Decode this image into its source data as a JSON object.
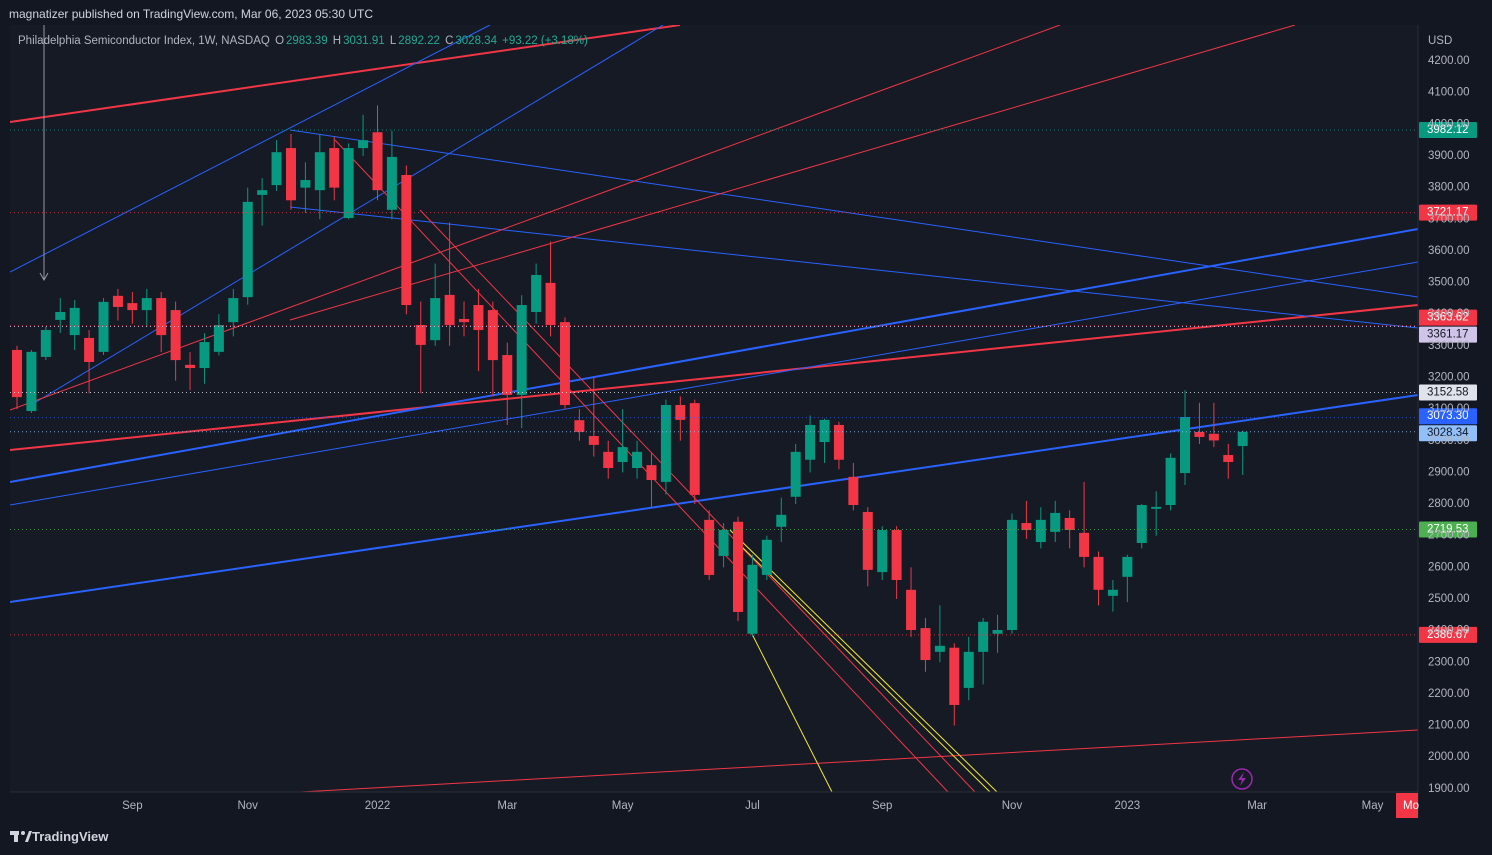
{
  "header": {
    "publisher": "magnatizer published on TradingView.com, Mar 06, 2023 05:30 UTC"
  },
  "footer": {
    "brand": "TradingView"
  },
  "chart_data": {
    "type": "candlestick",
    "title": "Philadelphia Semiconductor Index, 1W, NASDAQ",
    "ohlc_letters": [
      "O",
      "H",
      "L",
      "C"
    ],
    "change": "+93.22 (+3.18%)",
    "currency": "USD",
    "cursor_label": "Mo",
    "up_color": "#089981",
    "down_color": "#f23645",
    "grid": false,
    "categories": [
      null,
      null,
      null,
      null,
      null,
      null,
      null,
      null,
      "Sep",
      null,
      null,
      null,
      null,
      null,
      null,
      null,
      "Nov",
      null,
      null,
      null,
      null,
      null,
      null,
      null,
      null,
      "2022",
      null,
      null,
      null,
      null,
      null,
      null,
      null,
      null,
      "Mar",
      null,
      null,
      null,
      null,
      null,
      null,
      null,
      "May",
      null,
      null,
      null,
      null,
      null,
      null,
      null,
      null,
      "Jul",
      null,
      null,
      null,
      null,
      null,
      null,
      null,
      null,
      "Sep",
      null,
      null,
      null,
      null,
      null,
      null,
      null,
      null,
      "Nov",
      null,
      null,
      null,
      null,
      null,
      null,
      null,
      "2023",
      null,
      null,
      null,
      null,
      null,
      null,
      null,
      null,
      "Mar",
      null,
      null,
      null,
      null,
      null,
      null,
      null,
      "May",
      null,
      null,
      null
    ],
    "open": [
      3287,
      3094,
      3265,
      3382,
      3334,
      3325,
      3281,
      3458,
      3435,
      3413,
      3451,
      3413,
      3240,
      3230,
      3281,
      3375,
      3454,
      3777,
      3808,
      3925,
      3800,
      3792,
      3925,
      3704,
      3925,
      3975,
      3730,
      3840,
      3366,
      3318,
      3461,
      3385,
      3429,
      3413,
      3271,
      3145,
      3407,
      3499,
      3375,
      3065,
      3015,
      2965,
      2933,
      2914,
      2923,
      2870,
      3113,
      3119,
      2750,
      2636,
      2744,
      2390,
      2576,
      2728,
      2823,
      2940,
      2996,
      3050,
      2886,
      2775,
      2585,
      2718,
      2529,
      2408,
      2333,
      2346,
      2219,
      2333,
      2390,
      2402,
      2740,
      2680,
      2712,
      2756,
      2709,
      2633,
      2510,
      2570,
      2677,
      2785,
      2797,
      2898,
      3028,
      3022,
      2955,
      2983.39,
      null,
      null,
      null,
      null,
      null,
      null,
      null,
      null,
      null,
      null,
      null,
      null
    ],
    "high": [
      3300,
      3287,
      3360,
      3451,
      3445,
      3350,
      3451,
      3480,
      3470,
      3480,
      3470,
      3440,
      3280,
      3340,
      3400,
      3480,
      3800,
      3830,
      3950,
      3970,
      3880,
      3970,
      3960,
      3940,
      4030,
      4060,
      3980,
      3870,
      3440,
      3560,
      3690,
      3440,
      3480,
      3440,
      3310,
      3460,
      3560,
      3630,
      3390,
      3100,
      3200,
      3000,
      3100,
      3000,
      2960,
      3130,
      3140,
      3130,
      2780,
      2740,
      2760,
      2640,
      2700,
      2820,
      2990,
      3080,
      3070,
      3060,
      2930,
      2790,
      2730,
      2730,
      2600,
      2440,
      2480,
      2360,
      2380,
      2440,
      2450,
      2770,
      2810,
      2790,
      2810,
      2780,
      2870,
      2650,
      2560,
      2640,
      2800,
      2840,
      2960,
      3160,
      3120,
      3120,
      2990,
      3031.91,
      null,
      null,
      null,
      null,
      null,
      null,
      null,
      null,
      null,
      null,
      null,
      null
    ],
    "low": [
      3100,
      3088,
      3255,
      3341,
      3287,
      3150,
      3271,
      3380,
      3370,
      3360,
      3280,
      3190,
      3160,
      3180,
      3270,
      3330,
      3430,
      3680,
      3790,
      3730,
      3720,
      3700,
      3760,
      3700,
      3900,
      3760,
      3700,
      3400,
      3150,
      3300,
      3300,
      3330,
      3220,
      3140,
      3050,
      3040,
      3370,
      3330,
      3100,
      3000,
      2950,
      2880,
      2900,
      2880,
      2790,
      2830,
      3000,
      2800,
      2560,
      2600,
      2430,
      2380,
      2560,
      2680,
      2800,
      2900,
      2930,
      2910,
      2780,
      2540,
      2560,
      2500,
      2380,
      2270,
      2300,
      2100,
      2180,
      2230,
      2330,
      2390,
      2690,
      2660,
      2680,
      2660,
      2600,
      2480,
      2460,
      2490,
      2660,
      2700,
      2780,
      2860,
      2990,
      2980,
      2880,
      2892.22,
      null,
      null,
      null,
      null,
      null,
      null,
      null,
      null,
      null,
      null,
      null,
      null
    ],
    "close": [
      3138,
      3281,
      3350,
      3407,
      3420,
      3249,
      3439,
      3423,
      3413,
      3451,
      3334,
      3255,
      3230,
      3312,
      3366,
      3451,
      3755,
      3792,
      3912,
      3760,
      3824,
      3912,
      3800,
      3925,
      3950,
      3792,
      3897,
      3429,
      3303,
      3451,
      3366,
      3375,
      3350,
      3255,
      3145,
      3429,
      3524,
      3366,
      3113,
      3028,
      2987,
      2914,
      2980,
      2965,
      2876,
      3113,
      3066,
      2829,
      2576,
      2718,
      2459,
      2608,
      2687,
      2766,
      2965,
      3050,
      3066,
      2940,
      2797,
      2592,
      2718,
      2560,
      2402,
      2307,
      2352,
      2165,
      2333,
      2428,
      2402,
      2750,
      2718,
      2750,
      2772,
      2718,
      2633,
      2529,
      2529,
      2633,
      2797,
      2791,
      2946,
      3075,
      3012,
      3001,
      2933,
      3028.34,
      null,
      null,
      null,
      null,
      null,
      null,
      null,
      null,
      null,
      null,
      null,
      null
    ],
    "ylim": [
      1890,
      4314
    ],
    "yticks": [
      {
        "value": 1900,
        "label": "1900.00"
      },
      {
        "value": 2000,
        "label": "2000.00"
      },
      {
        "value": 2100,
        "label": "2100.00"
      },
      {
        "value": 2200,
        "label": "2200.00"
      },
      {
        "value": 2300,
        "label": "2300.00"
      },
      {
        "value": 2400,
        "label": "2400.00"
      },
      {
        "value": 2500,
        "label": "2500.00"
      },
      {
        "value": 2600,
        "label": "2600.00"
      },
      {
        "value": 2700,
        "label": "2700.00"
      },
      {
        "value": 2800,
        "label": "2800.00"
      },
      {
        "value": 2900,
        "label": "2900.00"
      },
      {
        "value": 3000,
        "label": "3000.00"
      },
      {
        "value": 3100,
        "label": "3100.00"
      },
      {
        "value": 3200,
        "label": "3200.00"
      },
      {
        "value": 3300,
        "label": "3300.00"
      },
      {
        "value": 3400,
        "label": "3400.00"
      },
      {
        "value": 3500,
        "label": "3500.00"
      },
      {
        "value": 3600,
        "label": "3600.00"
      },
      {
        "value": 3700,
        "label": "3700.00"
      },
      {
        "value": 3800,
        "label": "3800.00"
      },
      {
        "value": 3900,
        "label": "3900.00"
      },
      {
        "value": 4000,
        "label": "4000.00"
      },
      {
        "value": 4100,
        "label": "4100.00"
      },
      {
        "value": 4200,
        "label": "4200.00"
      }
    ],
    "levels": [
      {
        "value": 3982.12,
        "label": "3982.12",
        "color": "#089981",
        "text_color": "#ffffff"
      },
      {
        "value": 3721.17,
        "label": "3721.17",
        "color": "#f23645",
        "text_color": "#ffffff"
      },
      {
        "value": 3363.62,
        "label": "3363.62",
        "color": "#f23645",
        "text_color": "#ffffff"
      },
      {
        "value": 3361.17,
        "label": "3361.17",
        "color": "#d1c4e9",
        "text_color": "#131722"
      },
      {
        "value": 3152.58,
        "label": "3152.58",
        "color": "#e0e3eb",
        "text_color": "#131722"
      },
      {
        "value": 3073.3,
        "label": "3073.30",
        "color": "#2962ff",
        "text_color": "#ffffff"
      },
      {
        "value": 3028.34,
        "label": "3028.34",
        "color": "#90bff9",
        "text_color": "#131722"
      },
      {
        "value": 2719.53,
        "label": "2719.53",
        "color": "#4caf50",
        "text_color": "#ffffff"
      },
      {
        "value": 2386.67,
        "label": "2386.67",
        "color": "#f23645",
        "text_color": "#ffffff"
      }
    ]
  }
}
